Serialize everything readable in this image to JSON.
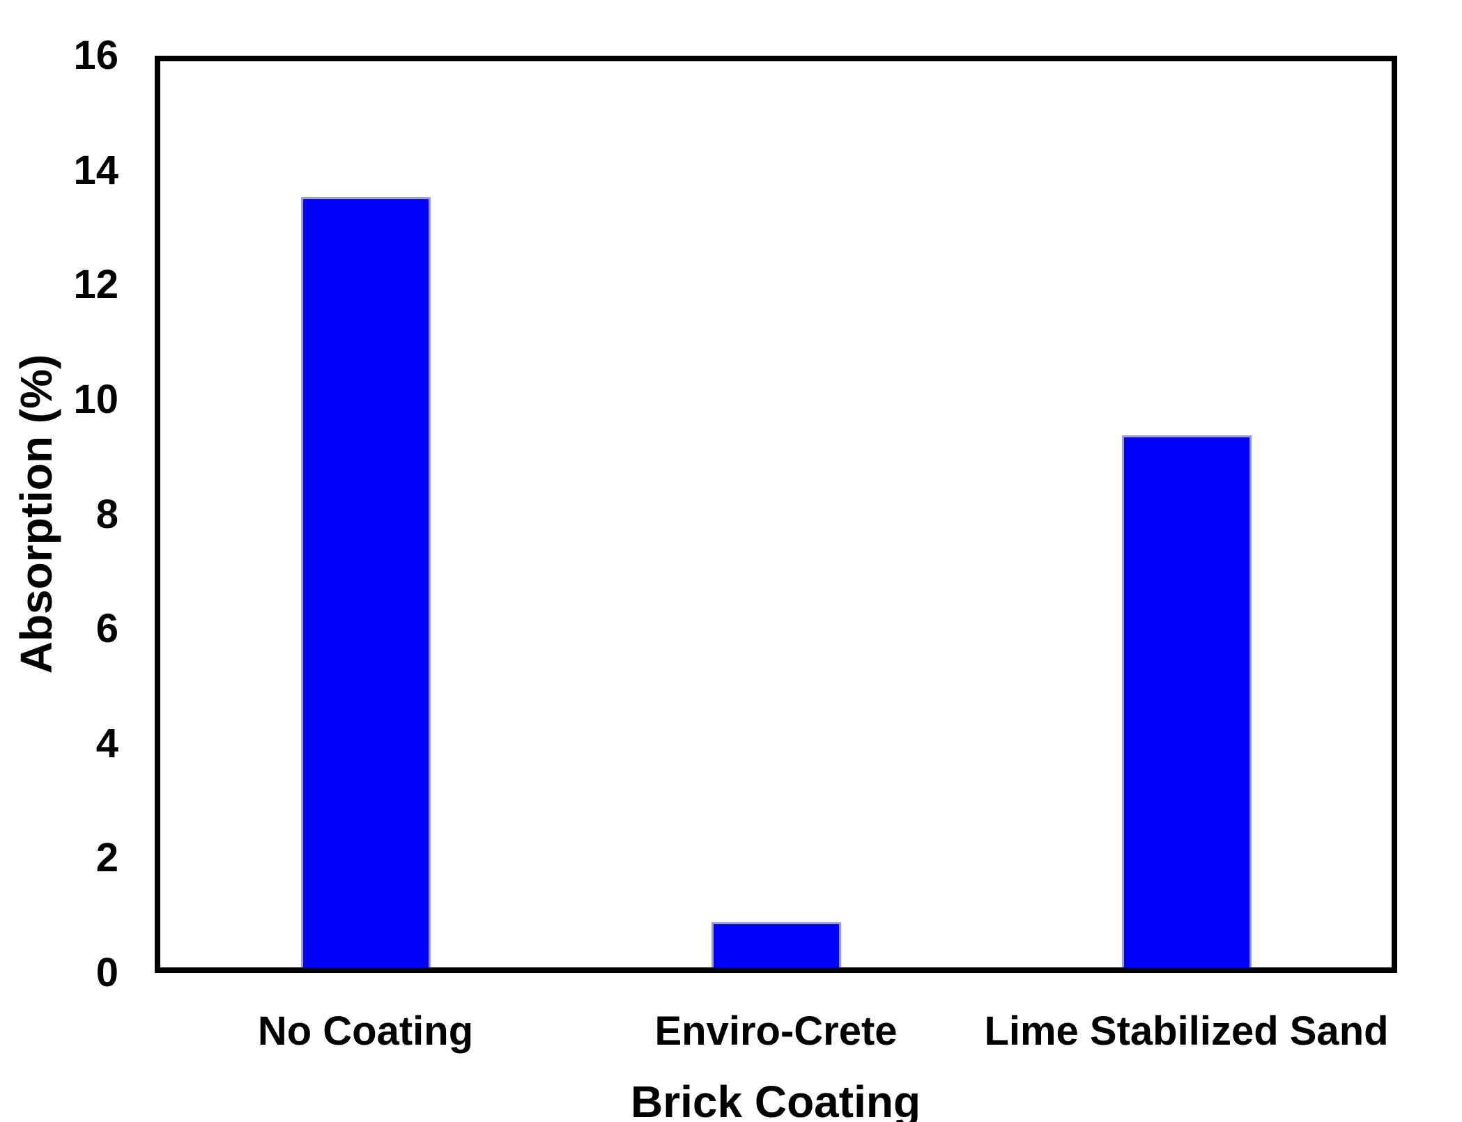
{
  "chart_data": {
    "type": "bar",
    "title": "",
    "xlabel": "Brick Coating",
    "ylabel": "Absorption (%)",
    "categories": [
      "No Coating",
      "Enviro-Crete",
      "Lime Stabilized Sand"
    ],
    "values": [
      13.6,
      0.8,
      9.4
    ],
    "ylim": [
      0,
      16
    ],
    "y_ticks": [
      0,
      2,
      4,
      6,
      8,
      10,
      12,
      14,
      16
    ],
    "grid": "off",
    "legend": "none",
    "bar_color": "#0000FE",
    "bar_edge_color": "#9A9AF4",
    "axis_color": "#000000",
    "background_color": "#FFFFFF"
  }
}
